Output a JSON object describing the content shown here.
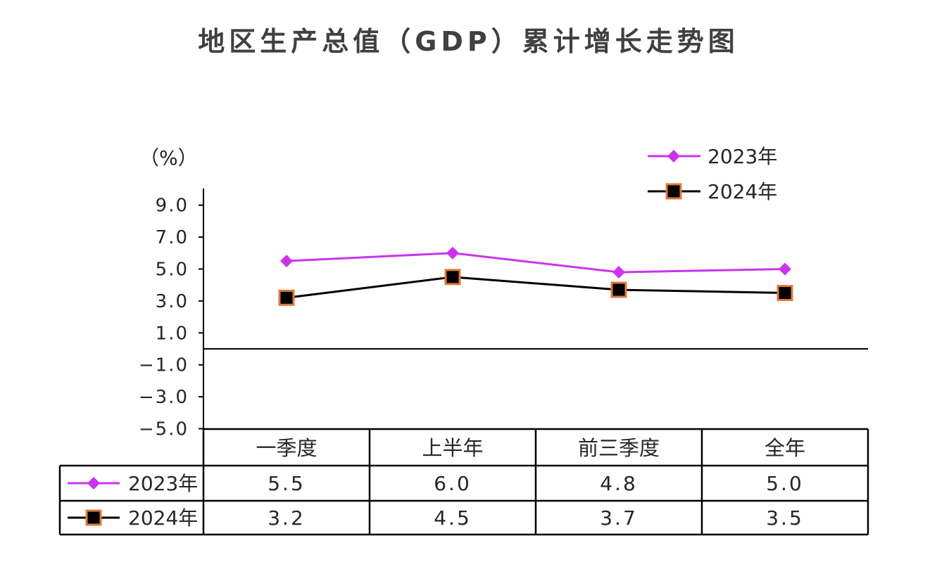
{
  "title": "地区生产总值（GDP）累计增长走势图",
  "unit_label": "（%）",
  "colors": {
    "series_2023": "#cc33ee",
    "series_2024": "#000000",
    "marker_2024_border": "#e07b39",
    "axis": "#000000"
  },
  "chart_data": {
    "type": "line",
    "title": "地区生产总值（GDP）累计增长走势图",
    "ylabel": "（%）",
    "ylim": [
      -5.0,
      10.0
    ],
    "yticks": [
      "9.0",
      "7.0",
      "5.0",
      "3.0",
      "1.0",
      "-1.0",
      "-3.0",
      "-5.0"
    ],
    "categories": [
      "一季度",
      "上半年",
      "前三季度",
      "全年"
    ],
    "legend_position": "top-right",
    "series": [
      {
        "name": "2023年",
        "values": [
          5.5,
          6.0,
          4.8,
          5.0
        ],
        "value_labels": [
          "5.5",
          "6.0",
          "4.8",
          "5.0"
        ],
        "marker": "diamond"
      },
      {
        "name": "2024年",
        "values": [
          3.2,
          4.5,
          3.7,
          3.5
        ],
        "value_labels": [
          "3.2",
          "4.5",
          "3.7",
          "3.5"
        ],
        "marker": "square"
      }
    ]
  }
}
